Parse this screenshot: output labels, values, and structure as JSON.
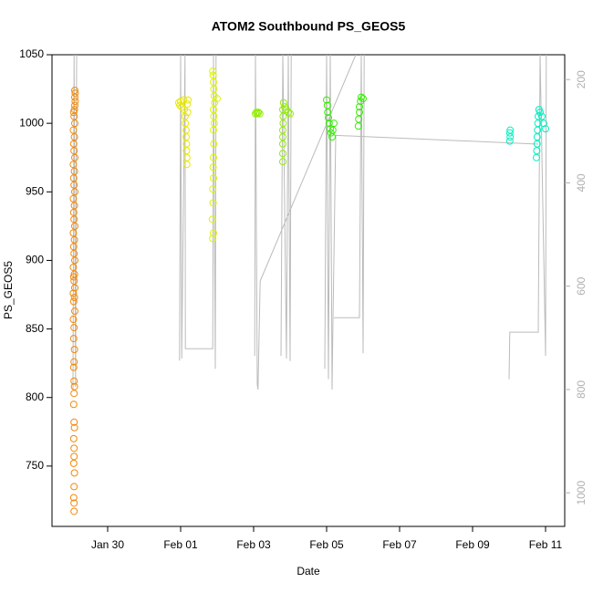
{
  "chart_data": {
    "type": "scatter",
    "title": "ATOM2 Southbound PS_GEOS5",
    "x_label": "Date",
    "y_label": "PS_GEOS5",
    "xlim": [
      28.475,
      42.525
    ],
    "xticks": [
      {
        "value": 30,
        "label": "Jan 30"
      },
      {
        "value": 32,
        "label": "Feb 01"
      },
      {
        "value": 34,
        "label": "Feb 03"
      },
      {
        "value": 36,
        "label": "Feb 05"
      },
      {
        "value": 38,
        "label": "Feb 07"
      },
      {
        "value": 40,
        "label": "Feb 09"
      },
      {
        "value": 42,
        "label": "Feb 11"
      }
    ],
    "ylim": [
      706,
      1050
    ],
    "yticks": [
      750,
      800,
      850,
      900,
      950,
      1000,
      1050
    ],
    "y2lim": [
      1065,
      152
    ],
    "y2ticks": [
      200,
      400,
      600,
      800,
      1000
    ],
    "series": [
      {
        "color": "#f28a0c",
        "x": [
          29.08,
          29.08,
          29.07,
          29.08,
          29.09,
          29.07,
          29.08,
          29.08,
          29.07,
          29.09,
          29.08,
          29.07,
          29.08,
          29.09,
          29.08,
          29.07,
          29.08,
          29.09,
          29.07,
          29.08,
          29.06,
          29.1,
          29.07,
          29.09,
          29.06,
          29.1,
          29.08,
          29.07,
          29.09,
          29.06,
          29.1,
          29.08,
          29.07,
          29.09,
          29.06,
          29.1,
          29.08,
          29.07,
          29.09,
          29.06,
          29.1,
          29.08,
          29.07,
          29.09,
          29.06,
          29.1,
          29.08,
          29.07,
          29.09,
          29.06,
          29.1,
          29.08,
          29.07,
          29.09,
          29.1,
          29.11,
          29.1,
          29.11,
          29.1
        ],
        "values": [
          717,
          723,
          727,
          735,
          745,
          752,
          757,
          763,
          770,
          778,
          782,
          795,
          803,
          808,
          812,
          822,
          826,
          835,
          843,
          851,
          857,
          863,
          870,
          873,
          876,
          880,
          885,
          888,
          890,
          895,
          900,
          905,
          910,
          915,
          920,
          925,
          930,
          935,
          940,
          945,
          950,
          955,
          960,
          965,
          970,
          975,
          980,
          985,
          990,
          995,
          1000,
          1005,
          1008,
          1010,
          1013,
          1016,
          1019,
          1022,
          1024
        ]
      },
      {
        "color": "#e8e800",
        "x": [
          31.95,
          31.98,
          32.0,
          32.03,
          32.08,
          32.1,
          32.12,
          32.13,
          32.15,
          32.15,
          32.16,
          32.16,
          32.17,
          32.17,
          32.2,
          32.18,
          32.19
        ],
        "values": [
          1015,
          1013,
          1016,
          1012,
          1017,
          1010,
          1005,
          1000,
          995,
          990,
          985,
          980,
          975,
          970,
          1017,
          1014,
          1008
        ]
      },
      {
        "color": "#dcf500",
        "x": [
          32.88,
          32.9,
          32.87,
          32.89,
          32.88,
          32.9,
          32.89,
          32.9,
          32.91,
          32.9,
          32.92,
          32.91,
          32.9,
          32.93,
          32.92,
          32.91,
          32.9,
          32.89,
          32.88,
          33.0
        ],
        "values": [
          916,
          920,
          930,
          942,
          952,
          960,
          968,
          975,
          985,
          995,
          1000,
          1005,
          1010,
          1015,
          1020,
          1025,
          1030,
          1035,
          1038,
          1018
        ]
      },
      {
        "color": "#90ee00",
        "x": [
          34.05,
          34.08,
          34.1,
          34.13,
          34.17,
          34.8,
          34.8,
          34.8,
          34.8,
          34.8,
          34.81,
          34.81,
          34.8,
          34.82,
          34.85,
          34.9,
          34.95,
          35.0
        ],
        "values": [
          1007,
          1008,
          1007,
          1008,
          1007,
          972,
          978,
          985,
          990,
          995,
          1000,
          1005,
          1010,
          1015,
          1012,
          1010,
          1008,
          1007
        ]
      },
      {
        "color": "#33ee00",
        "x": [
          36.0,
          36.02,
          36.03,
          36.05,
          36.07,
          36.1,
          36.12,
          36.15,
          36.17,
          36.2,
          36.87,
          36.88,
          36.9,
          36.9,
          36.93,
          36.95,
          37.0
        ],
        "values": [
          1017,
          1013,
          1008,
          1004,
          1000,
          996,
          993,
          990,
          995,
          1000,
          998,
          1003,
          1008,
          1012,
          1016,
          1019,
          1018
        ]
      },
      {
        "color": "#00eec0",
        "x": [
          41.02,
          41.03,
          41.02,
          41.03,
          41.75,
          41.76,
          41.77,
          41.77,
          41.78,
          41.79,
          41.8,
          41.82,
          41.85,
          41.9,
          41.95,
          42.0
        ],
        "values": [
          987,
          990,
          993,
          995,
          975,
          980,
          985,
          990,
          995,
          1000,
          1005,
          1010,
          1008,
          1005,
          1000,
          996
        ]
      },
      {
        "color": "#bbbbbb",
        "axis": "y2",
        "x": [
          29.05,
          29.08,
          29.12,
          29.15,
          null,
          31.97,
          32.0,
          32.03,
          32.12,
          32.13,
          32.88,
          32.9,
          32.95,
          32.97,
          null,
          34.03,
          34.05,
          34.1,
          34.12,
          34.18,
          36.8,
          null,
          34.75,
          34.8,
          34.9,
          34.95,
          35.0,
          35.03,
          null,
          35.95,
          36.0,
          36.05,
          36.1,
          36.15,
          36.17,
          36.25,
          41.8,
          null,
          36.2,
          36.9,
          36.95,
          37.0,
          37.03,
          null,
          41.0,
          41.02,
          41.8,
          41.85,
          42.0,
          42.02
        ],
        "values": [
          800,
          152,
          795,
          152,
          null,
          744,
          152,
          740,
          152,
          721,
          721,
          152,
          760,
          152,
          null,
          735,
          152,
          790,
          800,
          590,
          152,
          null,
          735,
          152,
          740,
          152,
          745,
          152,
          null,
          760,
          152,
          780,
          152,
          800,
          689,
          308,
          325,
          null,
          661,
          661,
          152,
          730,
          152,
          null,
          780,
          689,
          689,
          152,
          735,
          152
        ]
      }
    ]
  }
}
